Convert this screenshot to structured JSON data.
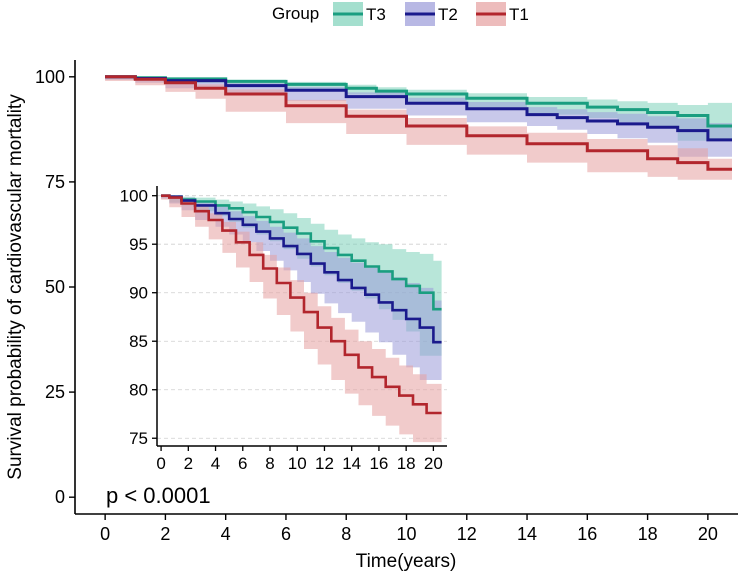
{
  "chart_data": {
    "type": "line",
    "subtype": "kaplan-meier survival curves with inset",
    "legend_title": "Group",
    "legend_position": "top",
    "xlabel": "Time(years)",
    "ylabel": "Survival probability of cardiovascular mortality",
    "annotation": "p < 0.0001",
    "colors": {
      "T3": "#1a9e80",
      "T2": "#1a1a8c",
      "T1": "#b2262d",
      "T3_band": "#7dd1b9",
      "T2_band": "#9a9ad8",
      "T1_band": "#e6a0a0"
    },
    "main": {
      "xlim": [
        -1,
        21
      ],
      "ylim": [
        -4,
        104
      ],
      "xticks": [
        "0",
        "2",
        "4",
        "6",
        "8",
        "10",
        "12",
        "14",
        "16",
        "18",
        "20"
      ],
      "yticks": [
        "0",
        "25",
        "50",
        "75",
        "100"
      ],
      "grid": false
    },
    "inset": {
      "xlim": [
        -0.3,
        21
      ],
      "ylim": [
        74.2,
        101
      ],
      "xticks": [
        "0",
        "2",
        "4",
        "6",
        "8",
        "10",
        "12",
        "14",
        "16",
        "18",
        "20"
      ],
      "yticks": [
        "75",
        "80",
        "85",
        "90",
        "95",
        "100"
      ],
      "grid": "horizontal dashed"
    },
    "series": [
      {
        "name": "T3",
        "x": [
          0,
          1,
          2,
          4,
          6,
          8,
          9,
          10,
          12,
          14,
          16,
          17,
          18,
          19,
          20,
          20.8
        ],
        "y": [
          100,
          99.8,
          99.5,
          98.9,
          98.2,
          97.3,
          96.6,
          95.9,
          94.9,
          93.7,
          92.8,
          92.2,
          91.5,
          90.8,
          88.3,
          88.3
        ],
        "lower": [
          100,
          99.6,
          99.2,
          98.5,
          97.6,
          96.5,
          95.8,
          94.9,
          93.7,
          92.2,
          91.0,
          90.2,
          89.2,
          88.3,
          84.8,
          84.8
        ],
        "upper": [
          100,
          100,
          99.8,
          99.3,
          98.8,
          98.1,
          97.5,
          96.9,
          96.1,
          95.2,
          94.6,
          94.2,
          93.8,
          93.3,
          93.8,
          93.8
        ]
      },
      {
        "name": "T2",
        "x": [
          0,
          1,
          2,
          4,
          6,
          8,
          10,
          12,
          14,
          15,
          16,
          17,
          18,
          19,
          20,
          20.8
        ],
        "y": [
          100,
          99.6,
          99.1,
          97.9,
          96.8,
          95.3,
          93.7,
          92.4,
          91.0,
          90.3,
          89.5,
          88.8,
          88.0,
          87.2,
          85.0,
          85.0
        ],
        "lower": [
          100,
          99.3,
          98.6,
          97.3,
          96.0,
          94.3,
          92.4,
          90.8,
          89.2,
          88.3,
          87.4,
          86.4,
          85.4,
          84.3,
          81.0,
          81.0
        ],
        "upper": [
          100,
          99.9,
          99.6,
          98.5,
          97.6,
          96.3,
          95.0,
          94.0,
          92.8,
          92.3,
          91.6,
          91.2,
          90.6,
          90.1,
          89.0,
          89.0
        ]
      },
      {
        "name": "T1",
        "x": [
          0,
          1,
          2,
          3,
          4,
          6,
          8,
          10,
          12,
          14,
          16,
          18,
          19,
          20,
          20.8
        ],
        "y": [
          100,
          99.4,
          98.6,
          97.3,
          95.9,
          93.1,
          90.6,
          88.3,
          86.0,
          84.1,
          82.4,
          80.5,
          79.6,
          78.0,
          78.0
        ],
        "lower": [
          100,
          99.0,
          98.0,
          96.4,
          94.8,
          91.7,
          89.0,
          86.4,
          83.8,
          81.5,
          79.6,
          77.3,
          76.2,
          75.5,
          75.5
        ],
        "upper": [
          100,
          99.8,
          99.2,
          98.2,
          97.0,
          94.5,
          92.2,
          90.2,
          88.2,
          86.7,
          85.2,
          83.7,
          83.0,
          80.5,
          80.5
        ]
      }
    ]
  }
}
